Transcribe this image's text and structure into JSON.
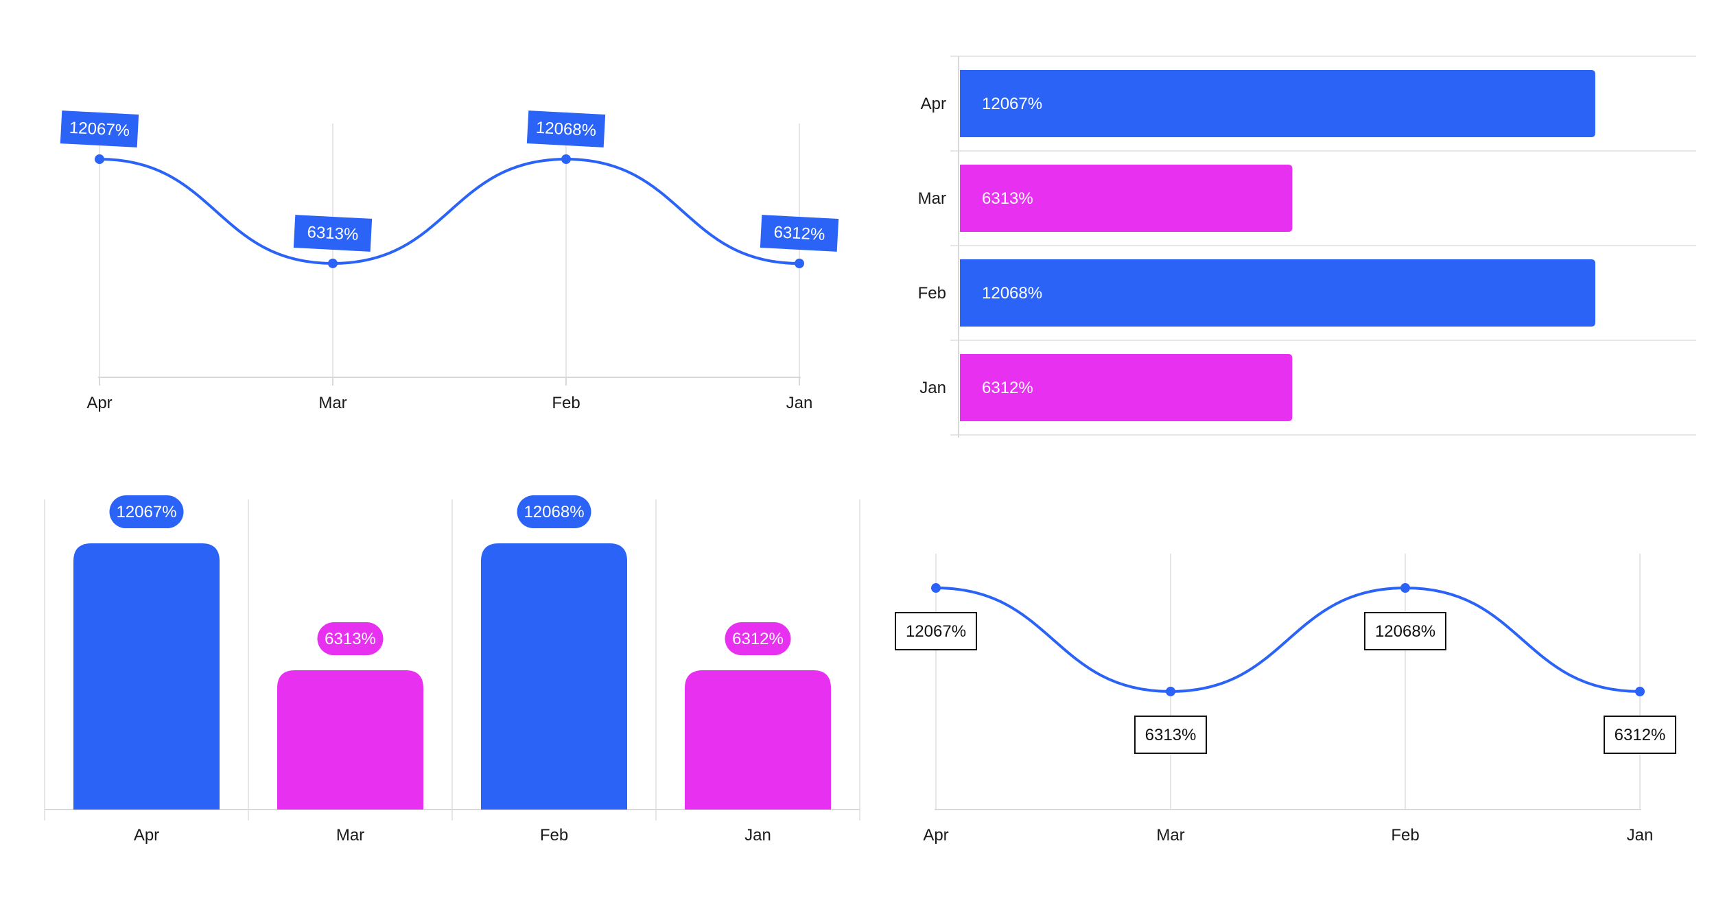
{
  "colors": {
    "blue": "#2B63F6",
    "magenta": "#E830F0",
    "grid": "#e6e6e6",
    "axis": "#d9d9d9",
    "text": "#1a1a1a"
  },
  "chart_data": [
    {
      "type": "line",
      "title": "",
      "xlabel": "",
      "ylabel": "",
      "categories": [
        "Apr",
        "Mar",
        "Feb",
        "Jan"
      ],
      "series": [
        {
          "values": [
            12067,
            6313,
            12068,
            6312
          ],
          "labels": [
            "12067%",
            "6313%",
            "12068%",
            "6312%"
          ]
        }
      ],
      "smooth": true,
      "grid": "vertical",
      "label_style": "rotated-filled-box"
    },
    {
      "type": "bar",
      "orientation": "horizontal",
      "title": "",
      "xlabel": "",
      "ylabel": "",
      "categories": [
        "Apr",
        "Mar",
        "Feb",
        "Jan"
      ],
      "series": [
        {
          "values": [
            12067,
            6313,
            12068,
            6312
          ],
          "labels": [
            "12067%",
            "6313%",
            "12068%",
            "6312%"
          ]
        }
      ],
      "bar_colors": [
        "blue",
        "magenta",
        "blue",
        "magenta"
      ],
      "grid": "horizontal",
      "label_position": "inside-start"
    },
    {
      "type": "bar",
      "orientation": "vertical",
      "title": "",
      "xlabel": "",
      "ylabel": "",
      "categories": [
        "Apr",
        "Mar",
        "Feb",
        "Jan"
      ],
      "series": [
        {
          "values": [
            12067,
            6313,
            12068,
            6312
          ],
          "labels": [
            "12067%",
            "6313%",
            "12068%",
            "6312%"
          ]
        }
      ],
      "bar_colors": [
        "blue",
        "magenta",
        "blue",
        "magenta"
      ],
      "grid": "vertical",
      "label_position": "above-pill"
    },
    {
      "type": "line",
      "title": "",
      "xlabel": "",
      "ylabel": "",
      "categories": [
        "Apr",
        "Mar",
        "Feb",
        "Jan"
      ],
      "series": [
        {
          "values": [
            12067,
            6313,
            12068,
            6312
          ],
          "labels": [
            "12067%",
            "6313%",
            "12068%",
            "6312%"
          ]
        }
      ],
      "smooth": true,
      "grid": "vertical",
      "label_style": "outlined-box-below"
    }
  ]
}
